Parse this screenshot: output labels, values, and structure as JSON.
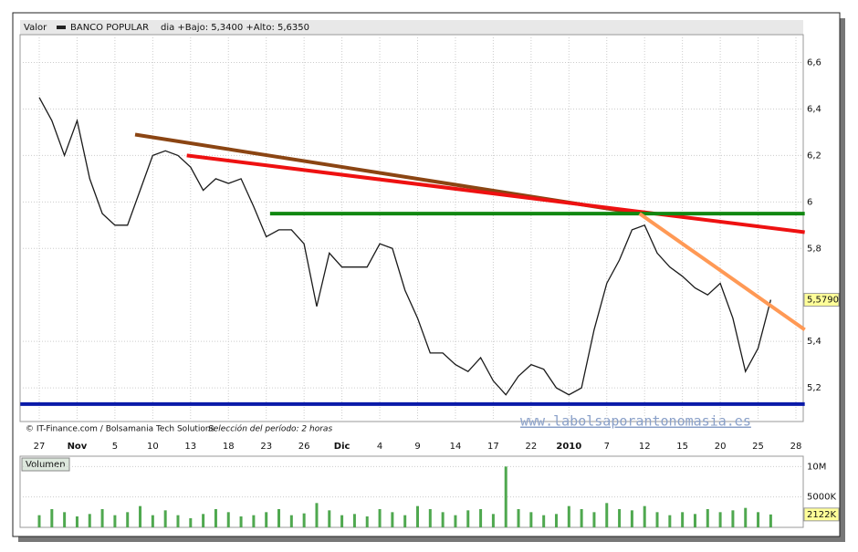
{
  "chart_data": [
    {
      "type": "line",
      "series_label": "Valor",
      "title": "BANCO POPULAR",
      "subtitle": "dia +Bajo: 5,3400 +Alto: 5,6350",
      "color": "#1a1a1a",
      "categories": [
        "27",
        null,
        null,
        "Nov",
        null,
        null,
        "5",
        null,
        null,
        "10",
        null,
        null,
        "13",
        null,
        null,
        "18",
        null,
        null,
        "23",
        null,
        null,
        "26",
        null,
        null,
        "Dic",
        null,
        null,
        "4",
        null,
        null,
        "9",
        null,
        null,
        "14",
        null,
        null,
        "17",
        null,
        null,
        "22",
        null,
        null,
        "2010",
        null,
        null,
        "7",
        null,
        null,
        "12",
        null,
        null,
        "15",
        null,
        null,
        "20",
        null,
        null,
        "25",
        null,
        null,
        "28"
      ],
      "values": [
        6.45,
        6.35,
        6.2,
        6.35,
        6.1,
        5.95,
        5.9,
        5.9,
        6.05,
        6.2,
        6.22,
        6.2,
        6.15,
        6.05,
        6.1,
        6.08,
        6.1,
        5.98,
        5.85,
        5.88,
        5.88,
        5.82,
        5.55,
        5.78,
        5.72,
        5.72,
        5.72,
        5.82,
        5.8,
        5.62,
        5.5,
        5.35,
        5.35,
        5.3,
        5.27,
        5.33,
        5.23,
        5.17,
        5.25,
        5.3,
        5.28,
        5.2,
        5.17,
        5.2,
        5.45,
        5.65,
        5.75,
        5.88,
        5.9,
        5.78,
        5.72,
        5.68,
        5.63,
        5.6,
        5.65,
        5.5,
        5.27,
        5.37,
        5.579,
        null,
        null
      ],
      "ylim": [
        5.055,
        6.72
      ],
      "yticks": [
        {
          "value": 5.2,
          "label": "5,2"
        },
        {
          "value": 5.4,
          "label": "5,4"
        },
        {
          "value": 5.8,
          "label": "5,8"
        },
        6,
        {
          "value": 6.2,
          "label": "6,2"
        },
        {
          "value": 6.4,
          "label": "6,4"
        },
        {
          "value": 6.6,
          "label": "6,6"
        }
      ],
      "grid": true,
      "last_value": {
        "value": 5.579,
        "label": "5,5790"
      },
      "trendlines": [
        {
          "color": "#8b4513",
          "x": [
            7.6,
            47.6
          ],
          "y": [
            6.29,
            5.95
          ]
        },
        {
          "color": "#ee1111",
          "x": [
            11.7,
            60.7
          ],
          "y": [
            6.2,
            5.87
          ]
        },
        {
          "color": "#118811",
          "x": [
            18.3,
            60.7
          ],
          "y": [
            5.95,
            5.95
          ]
        },
        {
          "color": "#0a1aa8",
          "x": [
            -1.5,
            60.7
          ],
          "y": [
            5.13,
            5.13
          ]
        },
        {
          "color": "#ff9955",
          "x": [
            47.6,
            60.7
          ],
          "y": [
            5.95,
            5.45
          ]
        }
      ],
      "annotations": [
        "© IT-Finance.com / Bolsamania Tech Solutions",
        "Selección del período: 2 horas",
        "www.labolsaporantonomasia.es"
      ]
    },
    {
      "type": "bar",
      "title": "Volumen",
      "color": "#4fa84f",
      "values": [
        2000000,
        3000000,
        2500000,
        1800000,
        2200000,
        3000000,
        2000000,
        2500000,
        3500000,
        2000000,
        2800000,
        2000000,
        1500000,
        2200000,
        3000000,
        2500000,
        1800000,
        2000000,
        2500000,
        3000000,
        2000000,
        2300000,
        4000000,
        2800000,
        2000000,
        2200000,
        1800000,
        3000000,
        2500000,
        2000000,
        3500000,
        3000000,
        2500000,
        2000000,
        2800000,
        3000000,
        2200000,
        10000000,
        3000000,
        2500000,
        2000000,
        2200000,
        3500000,
        3000000,
        2500000,
        4000000,
        3000000,
        2800000,
        3500000,
        2500000,
        2000000,
        2500000,
        2200000,
        3000000,
        2500000,
        2800000,
        3200000,
        2500000,
        2122000,
        null,
        null
      ],
      "ylim": [
        0,
        11700000
      ],
      "yticks": [
        {
          "value": 5000000,
          "label": "5000K"
        },
        {
          "value": 10000000,
          "label": "10M"
        }
      ],
      "last_value": {
        "value": 2122000,
        "label": "2122K"
      }
    }
  ]
}
